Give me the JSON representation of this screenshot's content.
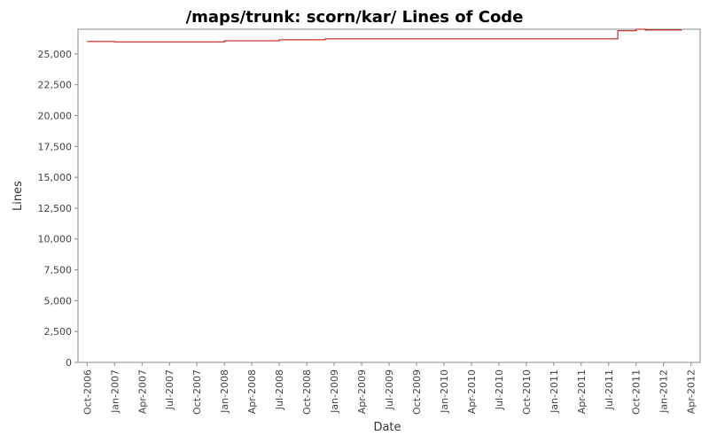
{
  "chart_data": {
    "type": "line",
    "title": "/maps/trunk: scorn/kar/ Lines of Code",
    "x_label": "Date",
    "y_label": "Lines",
    "x": [
      "2006-10",
      "2007-01",
      "2008-01",
      "2008-07",
      "2008-12",
      "2011-08",
      "2011-10",
      "2011-11",
      "2012-03"
    ],
    "series": [
      {
        "name": "Lines",
        "color": "#b80000",
        "values": [
          26000,
          25980,
          26070,
          26150,
          26220,
          26870,
          27000,
          26940,
          26940
        ]
      }
    ],
    "step": true,
    "xlim": [
      "2006-09",
      "2012-05"
    ],
    "xticks": [
      {
        "value": "2006-10",
        "label": "Oct-2006"
      },
      {
        "value": "2007-01",
        "label": "Jan-2007"
      },
      {
        "value": "2007-04",
        "label": "Apr-2007"
      },
      {
        "value": "2007-07",
        "label": "Jul-2007"
      },
      {
        "value": "2007-10",
        "label": "Oct-2007"
      },
      {
        "value": "2008-01",
        "label": "Jan-2008"
      },
      {
        "value": "2008-04",
        "label": "Apr-2008"
      },
      {
        "value": "2008-07",
        "label": "Jul-2008"
      },
      {
        "value": "2008-10",
        "label": "Oct-2008"
      },
      {
        "value": "2009-01",
        "label": "Jan-2009"
      },
      {
        "value": "2009-04",
        "label": "Apr-2009"
      },
      {
        "value": "2009-07",
        "label": "Jul-2009"
      },
      {
        "value": "2009-10",
        "label": "Oct-2009"
      },
      {
        "value": "2010-01",
        "label": "Jan-2010"
      },
      {
        "value": "2010-04",
        "label": "Apr-2010"
      },
      {
        "value": "2010-07",
        "label": "Jul-2010"
      },
      {
        "value": "2010-10",
        "label": "Oct-2010"
      },
      {
        "value": "2011-01",
        "label": "Jan-2011"
      },
      {
        "value": "2011-04",
        "label": "Apr-2011"
      },
      {
        "value": "2011-07",
        "label": "Jul-2011"
      },
      {
        "value": "2011-10",
        "label": "Oct-2011"
      },
      {
        "value": "2012-01",
        "label": "Jan-2012"
      },
      {
        "value": "2012-04",
        "label": "Apr-2012"
      }
    ],
    "ylim": [
      0,
      27000
    ],
    "yticks": [
      0,
      {
        "value": 2500,
        "label": "2,500"
      },
      {
        "value": 5000,
        "label": "5,000"
      },
      {
        "value": 7500,
        "label": "7,500"
      },
      {
        "value": 10000,
        "label": "10,000"
      },
      {
        "value": 12500,
        "label": "12,500"
      },
      {
        "value": 15000,
        "label": "15,000"
      },
      {
        "value": 17500,
        "label": "17,500"
      },
      {
        "value": 20000,
        "label": "20,000"
      },
      {
        "value": 22500,
        "label": "22,500"
      },
      {
        "value": 25000,
        "label": "25,000"
      }
    ],
    "grid": false
  }
}
